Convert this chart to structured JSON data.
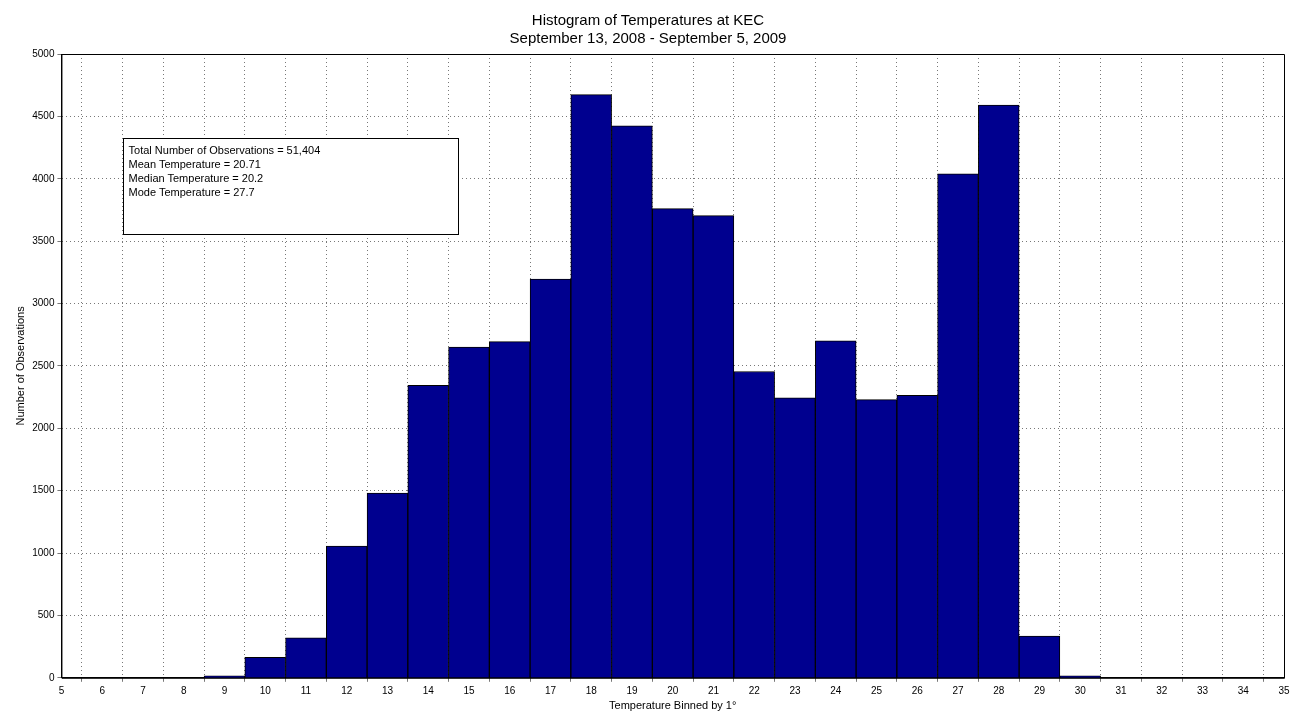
{
  "chart_data": {
    "type": "histogram",
    "title": "Histogram of Temperatures at KEC",
    "subtitle": "September 13, 2008 - September 5, 2009",
    "xlabel": "Temperature Binned by 1°",
    "ylabel": "Number of Observations",
    "bins": [
      8.5,
      9.5,
      10.5,
      11.5,
      12.5,
      13.5,
      14.5,
      15.5,
      16.5,
      17.5,
      18.5,
      19.5,
      20.5,
      21.5,
      22.5,
      23.5,
      24.5,
      25.5,
      26.5,
      27.5,
      28.5,
      29.5,
      30.5
    ],
    "values": [
      15,
      165,
      320,
      1055,
      1480,
      2345,
      2650,
      2695,
      3195,
      4675,
      4425,
      3760,
      3705,
      2455,
      2245,
      2700,
      2230,
      2265,
      4040,
      4590,
      335,
      15
    ],
    "color": "#00008f",
    "xlim": [
      5,
      35
    ],
    "xticks": [
      5,
      6,
      7,
      8,
      9,
      10,
      11,
      12,
      13,
      14,
      15,
      16,
      17,
      18,
      19,
      20,
      21,
      22,
      23,
      24,
      25,
      26,
      27,
      28,
      29,
      30,
      31,
      32,
      33,
      34,
      35
    ],
    "ylim": [
      0,
      5000
    ],
    "yticks": [
      0,
      500,
      1000,
      1500,
      2000,
      2500,
      3000,
      3500,
      4000,
      4500,
      5000
    ],
    "grid": true,
    "annotations": [
      "Total Number of Observations = 51,404",
      "Mean Temperature = 20.71",
      "Median Temperature = 20.2",
      "Mode Temperature = 27.7"
    ]
  }
}
